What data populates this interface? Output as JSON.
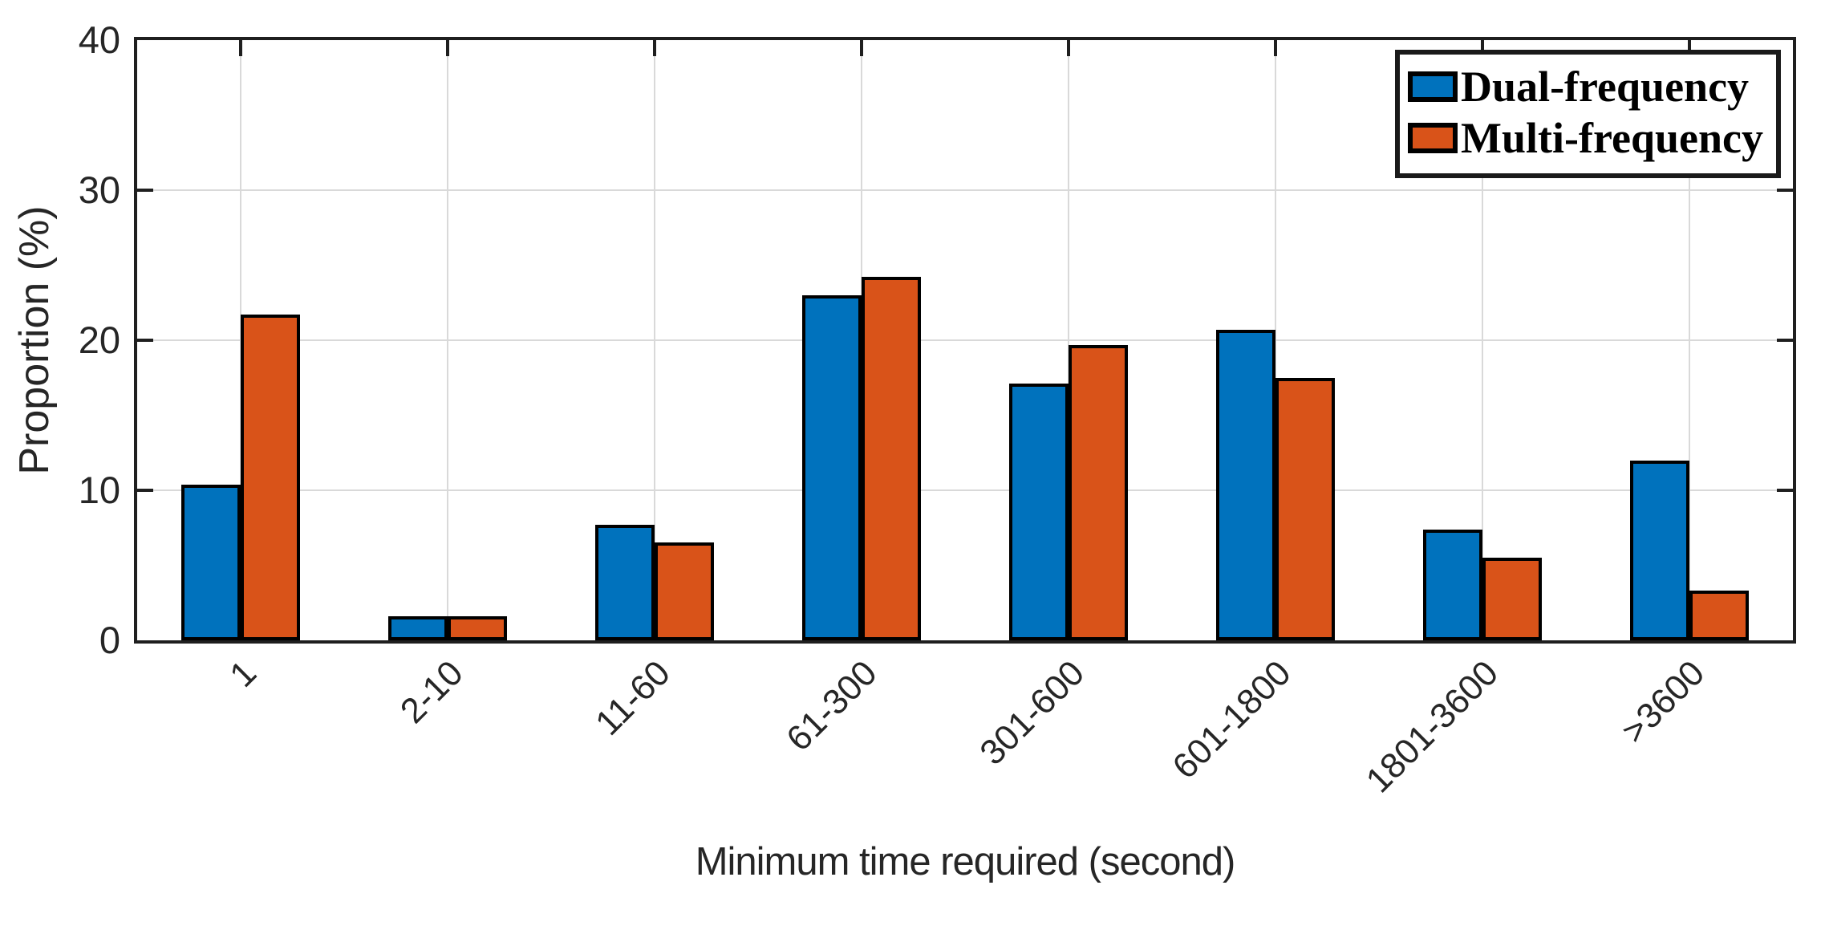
{
  "chart_data": {
    "type": "bar",
    "title": "",
    "xlabel": "Minimum time required (second)",
    "ylabel": "Proportion (%)",
    "categories": [
      "1",
      "2-10",
      "11-60",
      "61-300",
      "301-600",
      "601-1800",
      "1801-3600",
      ">3600"
    ],
    "series": [
      {
        "name": "Dual-frequency",
        "color": "#0072BD",
        "values": [
          10.4,
          1.6,
          7.7,
          23.0,
          17.1,
          20.7,
          7.4,
          12.0
        ]
      },
      {
        "name": "Multi-frequency",
        "color": "#D95319",
        "values": [
          21.7,
          1.6,
          6.5,
          24.2,
          19.7,
          17.5,
          5.5,
          3.3
        ]
      }
    ],
    "ylim": [
      0,
      40
    ],
    "yticks": [
      0,
      10,
      20,
      30,
      40
    ],
    "grid": true,
    "legend_position": "top-right",
    "x_tick_rotation_deg": 45,
    "bar_edge_color": "#000000",
    "axis_color": "#1f1f1f",
    "grid_color": "#d9d9d9"
  }
}
